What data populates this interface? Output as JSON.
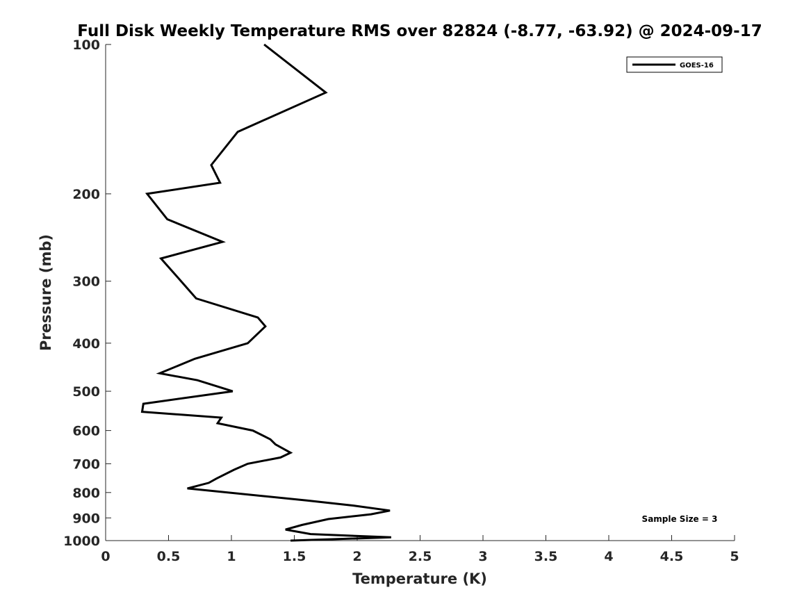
{
  "chart_data": {
    "type": "line",
    "title": "Full Disk Weekly Temperature RMS over 82824 (-8.77, -63.92) @ 2024-09-17",
    "xlabel": "Temperature (K)",
    "ylabel": "Pressure (mb)",
    "xlim": [
      0,
      5
    ],
    "ylim": [
      100,
      1000
    ],
    "y_scale": "log",
    "y_reversed": true,
    "x_ticks": [
      "0",
      "0.5",
      "1",
      "1.5",
      "2",
      "2.5",
      "3",
      "3.5",
      "4",
      "4.5",
      "5"
    ],
    "y_ticks": [
      "100",
      "200",
      "300",
      "400",
      "500",
      "600",
      "700",
      "800",
      "900",
      "1000"
    ],
    "grid": false,
    "legend": {
      "position": "top-right",
      "entries": [
        "GOES-16"
      ]
    },
    "annotation": "Sample Size = 3",
    "series": [
      {
        "name": "GOES-16",
        "color": "#000000",
        "points": [
          [
            1.26,
            100
          ],
          [
            1.75,
            125
          ],
          [
            1.05,
            150
          ],
          [
            0.84,
            175
          ],
          [
            0.91,
            190
          ],
          [
            0.33,
            200
          ],
          [
            0.49,
            225
          ],
          [
            0.93,
            250
          ],
          [
            0.44,
            270
          ],
          [
            0.6,
            300
          ],
          [
            0.72,
            325
          ],
          [
            1.21,
            355
          ],
          [
            1.27,
            370
          ],
          [
            1.13,
            400
          ],
          [
            0.71,
            430
          ],
          [
            0.43,
            460
          ],
          [
            0.73,
            475
          ],
          [
            0.9,
            490
          ],
          [
            1.01,
            500
          ],
          [
            0.3,
            530
          ],
          [
            0.29,
            550
          ],
          [
            0.92,
            565
          ],
          [
            0.89,
            580
          ],
          [
            1.17,
            600
          ],
          [
            1.31,
            625
          ],
          [
            1.35,
            640
          ],
          [
            1.47,
            665
          ],
          [
            1.39,
            680
          ],
          [
            1.13,
            700
          ],
          [
            1.02,
            720
          ],
          [
            0.88,
            750
          ],
          [
            0.82,
            765
          ],
          [
            0.65,
            785
          ],
          [
            1.6,
            830
          ],
          [
            1.97,
            850
          ],
          [
            2.26,
            870
          ],
          [
            2.11,
            885
          ],
          [
            1.77,
            905
          ],
          [
            1.56,
            930
          ],
          [
            1.43,
            950
          ],
          [
            1.63,
            970
          ],
          [
            2.27,
            985
          ],
          [
            1.47,
            1000
          ]
        ]
      }
    ]
  }
}
